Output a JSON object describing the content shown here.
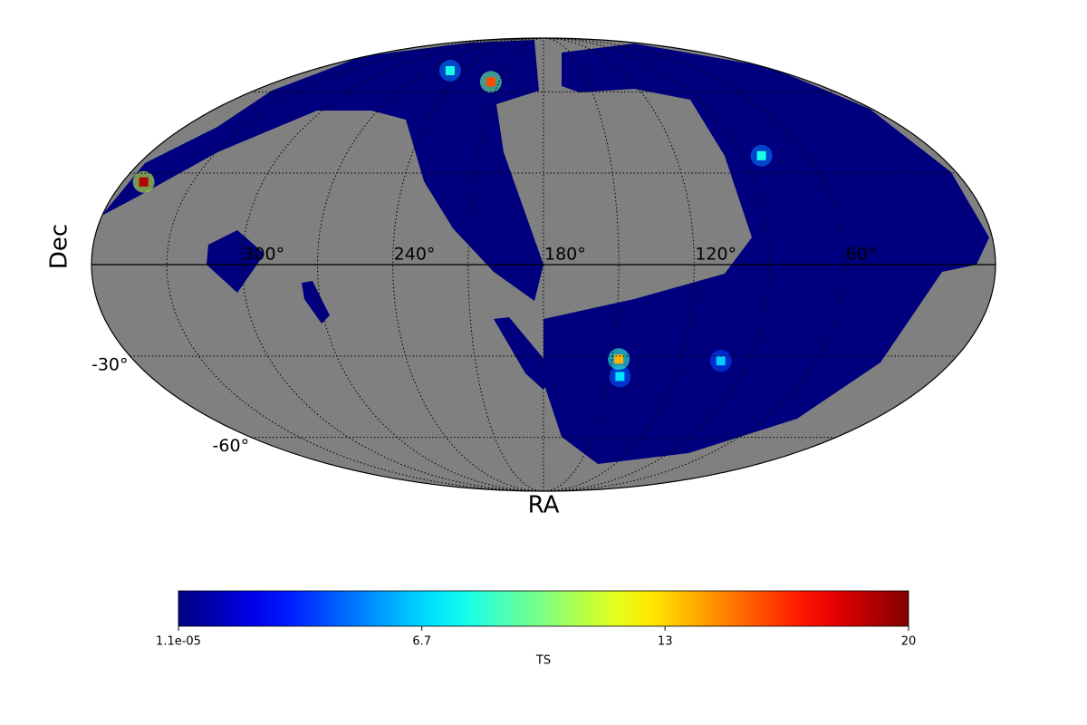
{
  "chart_data": {
    "type": "mollweide",
    "xlabel": "RA",
    "ylabel": "Dec",
    "xticks": [
      {
        "value": 300,
        "label": "300°"
      },
      {
        "value": 240,
        "label": "240°"
      },
      {
        "value": 180,
        "label": "180°"
      },
      {
        "value": 120,
        "label": "120°"
      },
      {
        "value": 60,
        "label": "60°"
      }
    ],
    "yticks": [
      {
        "value": -30,
        "label": "-30°"
      },
      {
        "value": -60,
        "label": "-60°"
      }
    ],
    "grid": true,
    "points": [
      {
        "ra": 351,
        "dec": 27,
        "ts": 19
      },
      {
        "ra": 145,
        "dec": -37,
        "ts": 7
      },
      {
        "ra": 102,
        "dec": -31.6,
        "ts": 6.5
      },
      {
        "ra": 81,
        "dec": 36,
        "ts": 8
      },
      {
        "ra": 252,
        "dec": 69.4,
        "ts": 8
      },
      {
        "ra": 215.5,
        "dec": 64.3,
        "ts": 16
      },
      {
        "ra": 147,
        "dec": -31,
        "ts": 14
      }
    ],
    "colorbar": {
      "label": "TS",
      "lim": [
        1.1e-05,
        20
      ],
      "ticks": [
        {
          "value": 1.1e-05,
          "label": "1.1e-05"
        },
        {
          "value": 6.667,
          "label": "6.7"
        },
        {
          "value": 13.33,
          "label": "13"
        },
        20
      ]
    }
  }
}
